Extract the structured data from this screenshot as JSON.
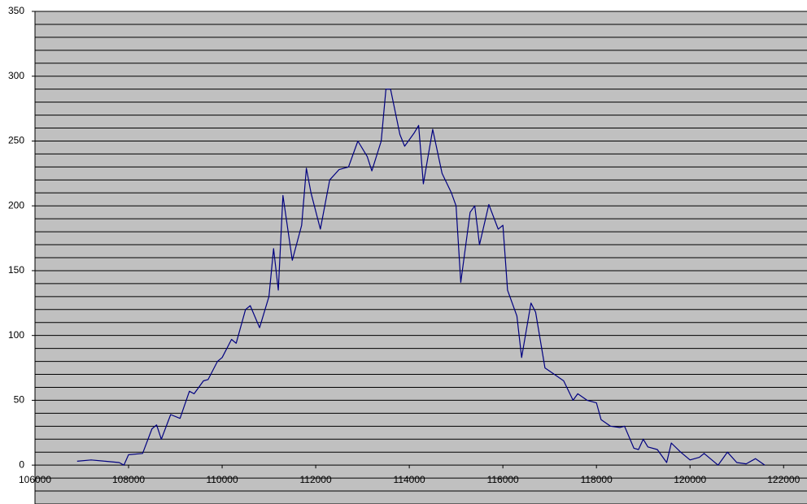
{
  "chart_data": {
    "type": "line",
    "color": "#000080",
    "background": "#c0c0c0",
    "x": [
      106900,
      107200,
      107500,
      107800,
      107900,
      108000,
      108300,
      108500,
      108600,
      108700,
      108900,
      109100,
      109300,
      109400,
      109600,
      109700,
      109900,
      110000,
      110200,
      110300,
      110500,
      110600,
      110800,
      111000,
      111100,
      111200,
      111300,
      111500,
      111700,
      111800,
      111900,
      112100,
      112300,
      112500,
      112700,
      112900,
      113100,
      113200,
      113400,
      113500,
      113600,
      113800,
      113900,
      114100,
      114200,
      114300,
      114500,
      114700,
      114900,
      115000,
      115100,
      115300,
      115400,
      115500,
      115700,
      115900,
      116000,
      116100,
      116300,
      116400,
      116600,
      116700,
      116900,
      117100,
      117300,
      117500,
      117600,
      117800,
      118000,
      118100,
      118300,
      118500,
      118600,
      118800,
      118900,
      119000,
      119100,
      119300,
      119500,
      119600,
      119800,
      120000,
      120200,
      120300,
      120600,
      120800,
      121000,
      121200,
      121400,
      121600
    ],
    "values": [
      3,
      4,
      3,
      2,
      0,
      8,
      9,
      28,
      31,
      20,
      39,
      36,
      57,
      55,
      65,
      66,
      80,
      83,
      97,
      94,
      120,
      123,
      106,
      130,
      167,
      135,
      208,
      158,
      185,
      229,
      210,
      182,
      220,
      228,
      230,
      250,
      238,
      227,
      250,
      290,
      290,
      255,
      246,
      256,
      262,
      217,
      259,
      225,
      210,
      200,
      141,
      195,
      200,
      170,
      201,
      182,
      185,
      135,
      115,
      83,
      125,
      118,
      75,
      70,
      65,
      50,
      55,
      50,
      48,
      35,
      30,
      29,
      30,
      13,
      12,
      20,
      14,
      12,
      2,
      17,
      10,
      4,
      6,
      9,
      0,
      10,
      2,
      1,
      5,
      0
    ],
    "xlim": [
      106000,
      122500
    ],
    "xticks": [
      106000,
      108000,
      110000,
      112000,
      114000,
      116000,
      118000,
      120000,
      122000
    ],
    "ylim": [
      -30,
      350
    ],
    "yticks": [
      0,
      50,
      100,
      150,
      200,
      250,
      300,
      350
    ],
    "ygrid": [
      -30,
      -20,
      -10,
      0,
      10,
      20,
      30,
      40,
      50,
      60,
      70,
      80,
      90,
      100,
      110,
      120,
      130,
      140,
      150,
      160,
      170,
      180,
      190,
      200,
      210,
      220,
      230,
      240,
      250,
      260,
      270,
      280,
      290,
      300,
      310,
      320,
      330,
      340,
      350
    ]
  }
}
